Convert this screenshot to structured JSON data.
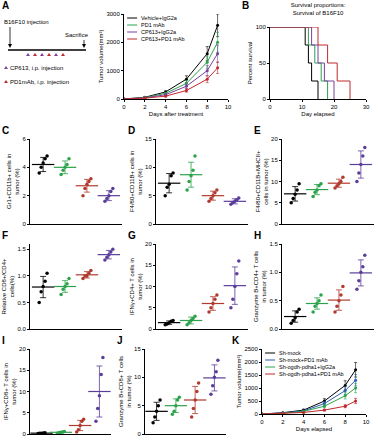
{
  "schematic": {
    "label": "A",
    "texts": [
      "B16F10 injection",
      "CP613, i.p. injection",
      "PD1mAb, i.p. injection",
      "Sacrifice"
    ]
  },
  "chart_data": [
    {
      "label": "A",
      "type": "line",
      "x_title": "Days after treatment",
      "y_title": "Tumor volume(mm³)",
      "x": [
        0,
        2,
        4,
        6,
        8,
        9
      ],
      "series": [
        {
          "name": "Vehicle+IgG2a",
          "color": "#000000",
          "values": [
            0,
            60,
            250,
            700,
            1600,
            2600
          ],
          "error": [
            0,
            15,
            40,
            120,
            250,
            400
          ]
        },
        {
          "name": "PD1 mAb",
          "color": "#2ca24a",
          "values": [
            0,
            50,
            200,
            550,
            1300,
            2000
          ],
          "error": [
            0,
            12,
            35,
            100,
            220,
            350
          ]
        },
        {
          "name": "CP613+IgG2a",
          "color": "#7b3fa0",
          "values": [
            0,
            40,
            150,
            450,
            1000,
            1600
          ],
          "error": [
            0,
            10,
            30,
            80,
            180,
            300
          ]
        },
        {
          "name": "CP613+PD1 mAb",
          "color": "#c0282d",
          "values": [
            0,
            30,
            100,
            300,
            700,
            1100
          ],
          "error": [
            0,
            8,
            20,
            60,
            120,
            200
          ]
        }
      ],
      "xlim": [
        0,
        10
      ],
      "xticks": [
        0,
        2,
        4,
        6,
        8,
        10
      ],
      "ylim": [
        0,
        3000
      ],
      "yticks": [
        0,
        1000,
        2000,
        3000
      ],
      "legend": "upper left",
      "marker": "circle"
    },
    {
      "label": "B",
      "type": "step",
      "title": "Survival proportions: Survival of B16F10",
      "x_title": "Day elapsed",
      "y_title": "Percent survival",
      "series": [
        {
          "color": "#000000",
          "x": [
            0,
            11,
            12,
            13,
            15
          ],
          "values": [
            100,
            75,
            50,
            25,
            0
          ]
        },
        {
          "color": "#2ca24a",
          "x": [
            0,
            12,
            14,
            16,
            18
          ],
          "values": [
            100,
            75,
            50,
            25,
            0
          ]
        },
        {
          "color": "#7b3fa0",
          "x": [
            0,
            13,
            15,
            17,
            20
          ],
          "values": [
            100,
            75,
            50,
            25,
            0
          ]
        },
        {
          "color": "#c0282d",
          "x": [
            0,
            15,
            18,
            21,
            25
          ],
          "values": [
            100,
            75,
            50,
            25,
            0
          ]
        }
      ],
      "xlim": [
        0,
        30
      ],
      "xticks": [
        0,
        10,
        20,
        30
      ],
      "ylim": [
        0,
        100
      ],
      "yticks": [
        0,
        50,
        100
      ]
    },
    {
      "label": "C",
      "type": "dot",
      "y_title": "Gr1+CD11b+ cells in tumor (%)",
      "categories": [
        null,
        null,
        null,
        null
      ],
      "colors": [
        "#000000",
        "#2ca24a",
        "#b03a2e",
        "#5a3d99"
      ],
      "points": [
        [
          3.6,
          4.0,
          4.3,
          4.6,
          4.8
        ],
        [
          3.5,
          3.8,
          4.0,
          4.2,
          4.6
        ],
        [
          2.0,
          2.5,
          2.8,
          3.0,
          3.2
        ],
        [
          1.6,
          1.8,
          2.0,
          2.3,
          2.5
        ]
      ],
      "mean": [
        4.2,
        4.0,
        2.7,
        2.0
      ],
      "error": [
        0.5,
        0.45,
        0.45,
        0.35
      ],
      "ylim": [
        0,
        6
      ],
      "yticks": [
        0,
        2,
        4,
        6
      ],
      "tick_labels": "y"
    },
    {
      "label": "D",
      "type": "dot",
      "y_title": "F4/80+CD11B+ cells in tumor (%)",
      "categories": [
        null,
        null,
        null,
        null
      ],
      "colors": [
        "#000000",
        "#2ca24a",
        "#b03a2e",
        "#5a3d99"
      ],
      "points": [
        [
          5,
          6.5,
          7,
          8.5,
          9
        ],
        [
          6,
          7.5,
          8.5,
          9.5,
          12
        ],
        [
          4,
          4.5,
          5,
          5.5,
          6
        ],
        [
          3.5,
          3.8,
          4,
          4.3,
          4.6
        ]
      ],
      "mean": [
        7.2,
        8.7,
        5.0,
        4.0
      ],
      "error": [
        1.7,
        2.2,
        0.8,
        0.45
      ],
      "ylim": [
        0,
        15
      ],
      "yticks": [
        0,
        5,
        10,
        15
      ],
      "tick_labels": "y"
    },
    {
      "label": "E",
      "type": "dot",
      "y_title": "F4/80+CD11B+MHCII+ cells in tumor (%)",
      "categories": [
        null,
        null,
        null,
        null
      ],
      "colors": [
        "#000000",
        "#2ca24a",
        "#b03a2e",
        "#5a3d99"
      ],
      "points": [
        [
          5,
          6,
          7,
          8,
          9.5
        ],
        [
          6.5,
          7.5,
          8,
          9,
          9.5
        ],
        [
          8.5,
          9,
          9.5,
          10,
          11
        ],
        [
          10,
          12,
          14,
          16,
          18
        ]
      ],
      "mean": [
        7.1,
        8.1,
        9.6,
        14
      ],
      "error": [
        1.7,
        1.2,
        0.95,
        3.2
      ],
      "ylim": [
        0,
        20
      ],
      "yticks": [
        0,
        5,
        10,
        15,
        20
      ],
      "tick_labels": "y"
    },
    {
      "label": "F",
      "type": "dot",
      "y_title": "Relative CD8+/CD4+ cells(%)",
      "categories": [
        null,
        null,
        null,
        null
      ],
      "colors": [
        "#000000",
        "#2ca24a",
        "#b03a2e",
        "#5a3d99"
      ],
      "points": [
        [
          0.5,
          0.7,
          0.8,
          0.9,
          1.05
        ],
        [
          0.65,
          0.75,
          0.8,
          0.85,
          0.95
        ],
        [
          0.95,
          1.0,
          1.0,
          1.05,
          1.1
        ],
        [
          1.3,
          1.35,
          1.4,
          1.45,
          1.5
        ]
      ],
      "mean": [
        0.79,
        0.8,
        1.02,
        1.4
      ],
      "error": [
        0.2,
        0.11,
        0.06,
        0.08
      ],
      "ylim": [
        0,
        1.6
      ],
      "yticks": [
        {
          "value": 0,
          "label": "0.0"
        },
        {
          "value": 0.5,
          "label": "0.5"
        },
        {
          "value": 1,
          "label": "1.0"
        },
        {
          "value": 1.5,
          "label": "1.5"
        }
      ],
      "tick_labels": "y"
    },
    {
      "label": "G",
      "type": "dot",
      "y_title": "IFNγ+CD4+ T cells in tumor (%)",
      "categories": [
        null,
        null,
        null,
        null
      ],
      "colors": [
        "#000000",
        "#2ca24a",
        "#b03a2e",
        "#5a3d99"
      ],
      "points": [
        [
          1,
          1.2,
          1.5,
          1.8,
          2
        ],
        [
          1,
          1.5,
          2,
          2.5,
          3
        ],
        [
          4,
          5,
          6,
          7,
          8
        ],
        [
          5,
          7,
          10,
          13,
          16
        ]
      ],
      "mean": [
        1.5,
        2.0,
        6.0,
        10.2
      ],
      "error": [
        0.4,
        0.8,
        1.6,
        4.4
      ],
      "ylim": [
        0,
        20
      ],
      "yticks": [
        0,
        5,
        10,
        15,
        20
      ],
      "tick_labels": "y"
    },
    {
      "label": "H",
      "type": "dot",
      "y_title": "Granzyme B+CD4+ T cells in tumor (%)",
      "categories": [
        null,
        null,
        null,
        null
      ],
      "colors": [
        "#000000",
        "#2ca24a",
        "#b03a2e",
        "#5a3d99"
      ],
      "points": [
        [
          0.1,
          0.15,
          0.2,
          0.3,
          0.35
        ],
        [
          0.3,
          0.4,
          0.45,
          0.5,
          0.6
        ],
        [
          0.3,
          0.4,
          0.5,
          0.6,
          0.75
        ],
        [
          0.7,
          0.85,
          1.0,
          1.1,
          1.3
        ]
      ],
      "mean": [
        0.22,
        0.45,
        0.51,
        0.99
      ],
      "error": [
        0.1,
        0.1,
        0.18,
        0.23
      ],
      "ylim": [
        0,
        1.5
      ],
      "yticks": [
        {
          "value": 0,
          "label": "0.0"
        },
        {
          "value": 0.5,
          "label": "0.5"
        },
        {
          "value": 1,
          "label": "1.0"
        },
        {
          "value": 1.5,
          "label": "1.5"
        }
      ],
      "tick_labels": "y"
    },
    {
      "label": "I",
      "type": "dot",
      "y_title": "IFNγ+CD8+ T cells in tumor (%)",
      "categories": [
        null,
        null,
        null,
        null
      ],
      "colors": [
        "#000000",
        "#2ca24a",
        "#b03a2e",
        "#5a3d99"
      ],
      "points": [
        [
          0.1,
          0.15,
          0.2,
          0.25,
          0.3
        ],
        [
          0.2,
          0.3,
          0.4,
          0.5,
          0.6
        ],
        [
          0.5,
          1,
          2,
          3,
          3.5
        ],
        [
          3,
          6,
          9,
          14,
          18
        ]
      ],
      "mean": [
        0.2,
        0.4,
        2.0,
        10
      ],
      "error": [
        0.1,
        0.15,
        1.2,
        6
      ],
      "ylim": [
        0,
        20
      ],
      "yticks": [
        0,
        5,
        10,
        15,
        20
      ],
      "tick_labels": "y"
    },
    {
      "label": "J",
      "type": "dot",
      "y_title": "Granzyme B+CD8+ T cells in tumor (%)",
      "categories": [
        null,
        null,
        null,
        null
      ],
      "colors": [
        "#000000",
        "#2ca24a",
        "#b03a2e",
        "#5a3d99"
      ],
      "points": [
        [
          2,
          3,
          4,
          5,
          6
        ],
        [
          3.5,
          4,
          5,
          6,
          6.5
        ],
        [
          3,
          4.5,
          6,
          7.5,
          9
        ],
        [
          7,
          8.5,
          10,
          11,
          13
        ]
      ],
      "mean": [
        4,
        5,
        6,
        9.9
      ],
      "error": [
        1.6,
        1.2,
        2.4,
        2.3
      ],
      "ylim": [
        0,
        15
      ],
      "yticks": [
        0,
        5,
        10,
        15
      ],
      "tick_labels": "y"
    },
    {
      "label": "K",
      "type": "line",
      "x_title": "Days elapsed",
      "y_title": "Tumor volume(mm³)",
      "x": [
        0,
        2,
        4,
        6,
        8,
        9
      ],
      "series": [
        {
          "name": "Sh-mock",
          "color": "#000000",
          "values": [
            0,
            50,
            150,
            500,
            1100,
            1700
          ],
          "error": [
            0,
            12,
            30,
            90,
            180,
            280
          ]
        },
        {
          "name": "Sh-mock+PD1 mAb",
          "color": "#2a5db0",
          "values": [
            0,
            40,
            120,
            400,
            900,
            1300
          ],
          "error": [
            0,
            10,
            25,
            80,
            150,
            220
          ]
        },
        {
          "name": "Sh-ogdh-pdha1+IgG2a",
          "color": "#2ca24a",
          "values": [
            0,
            30,
            100,
            300,
            700,
            1000
          ],
          "error": [
            0,
            8,
            20,
            60,
            120,
            180
          ]
        },
        {
          "name": "Sh-ogdh-pdha1+PD1 mAb",
          "color": "#c0282d",
          "values": [
            0,
            20,
            60,
            150,
            300,
            500
          ],
          "error": [
            0,
            5,
            15,
            30,
            60,
            100
          ]
        }
      ],
      "xlim": [
        0,
        10
      ],
      "xticks": [
        0,
        2,
        4,
        6,
        8,
        10
      ],
      "ylim": [
        0,
        2500
      ],
      "yticks": [
        0,
        500,
        1000,
        1500,
        2000,
        2500
      ],
      "legend": "upper left",
      "marker": "circle"
    }
  ]
}
